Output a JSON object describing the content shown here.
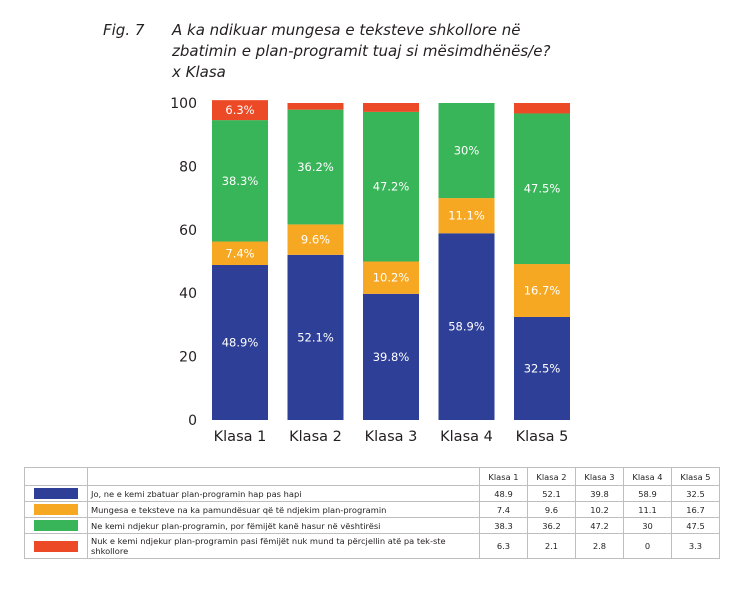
{
  "figure": {
    "label": "Fig. 7",
    "title_lines": [
      "A ka ndikuar mungesa e teksteve shkollore në",
      "zbatimin e plan-programit tuaj si mësimdhënës/e?",
      "x Klasa"
    ]
  },
  "chart_data": {
    "type": "bar",
    "stacked": true,
    "categories": [
      "Klasa 1",
      "Klasa 2",
      "Klasa 3",
      "Klasa 4",
      "Klasa 5"
    ],
    "ylim": [
      0,
      100
    ],
    "yticks": [
      0,
      20,
      40,
      60,
      80,
      100
    ],
    "series": [
      {
        "name": "Jo, ne e kemi zbatuar plan-programin hap pas hapi",
        "color": "#2e3f98",
        "values": [
          48.9,
          52.1,
          39.8,
          58.9,
          32.5
        ],
        "labels": [
          "48.9%",
          "52.1%",
          "39.8%",
          "58.9%",
          "32.5%"
        ]
      },
      {
        "name": "Mungesa e teksteve na ka pamundësuar që të ndjekim plan-programin",
        "color": "#f7a823",
        "values": [
          7.4,
          9.6,
          10.2,
          11.1,
          16.7
        ],
        "labels": [
          "7.4%",
          "9.6%",
          "10.2%",
          "11.1%",
          "16.7%"
        ]
      },
      {
        "name": "Ne kemi ndjekur plan-programin, por fëmijët kanë hasur në vështirësi",
        "color": "#38b558",
        "values": [
          38.3,
          36.2,
          47.2,
          30,
          47.5
        ],
        "labels": [
          "38.3%",
          "36.2%",
          "47.2%",
          "30%",
          "47.5%"
        ]
      },
      {
        "name": "Nuk e kemi ndjekur plan-programin pasi fëmijët nuk mund ta përcjellin atë pa tekste shkollore",
        "color": "#ec4a27",
        "values": [
          6.3,
          2.1,
          2.8,
          0,
          3.3
        ],
        "labels": [
          "6.3%",
          "",
          "",
          "",
          ""
        ]
      }
    ]
  },
  "table": {
    "headers": [
      "Klasa 1",
      "Klasa 2",
      "Klasa 3",
      "Klasa 4",
      "Klasa 5"
    ],
    "rows": [
      {
        "label": "Jo, ne e kemi zbatuar plan-programin hap pas hapi",
        "values": [
          "48.9",
          "52.1",
          "39.8",
          "58.9",
          "32.5"
        ]
      },
      {
        "label": "Mungesa e teksteve na ka pamundësuar që të ndjekim plan-programin",
        "values": [
          "7.4",
          "9.6",
          "10.2",
          "11.1",
          "16.7"
        ]
      },
      {
        "label": "Ne kemi ndjekur plan-programin, por fëmijët kanë hasur në vështirësi",
        "values": [
          "38.3",
          "36.2",
          "47.2",
          "30",
          "47.5"
        ]
      },
      {
        "label": "Nuk e kemi ndjekur plan-programin pasi fëmijët nuk mund ta përcjellin atë pa tek-ste shkollore",
        "values": [
          "6.3",
          "2.1",
          "2.8",
          "0",
          "3.3"
        ]
      }
    ]
  }
}
